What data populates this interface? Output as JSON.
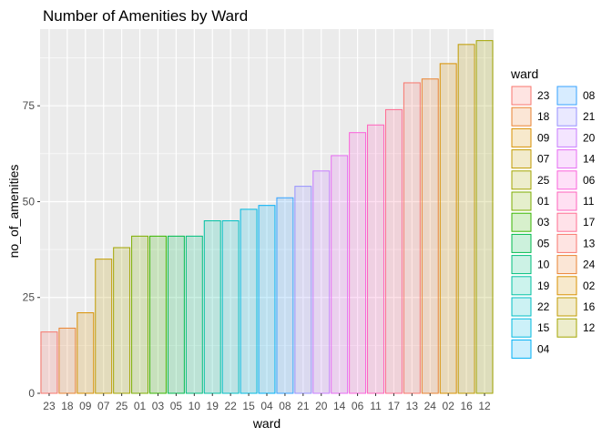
{
  "chart_data": {
    "type": "bar",
    "title": "Number of Amenities by Ward",
    "xlabel": "ward",
    "ylabel": "no_of_amenities",
    "categories": [
      "23",
      "18",
      "09",
      "07",
      "25",
      "01",
      "03",
      "05",
      "10",
      "19",
      "22",
      "15",
      "04",
      "08",
      "21",
      "20",
      "14",
      "06",
      "11",
      "17",
      "13",
      "24",
      "02",
      "16",
      "12"
    ],
    "values": [
      16,
      17,
      21,
      35,
      38,
      41,
      41,
      41,
      41,
      45,
      45,
      48,
      49,
      51,
      54,
      58,
      62,
      68,
      70,
      74,
      81,
      82,
      86,
      91,
      92
    ],
    "colors": [
      "#F8766D",
      "#EA8331",
      "#D89000",
      "#C09B00",
      "#A3A500",
      "#7CAE00",
      "#39B600",
      "#00BB4E",
      "#00BF7D",
      "#00C1A3",
      "#00BFC4",
      "#00BAE0",
      "#00B0F6",
      "#35A2FF",
      "#9590FF",
      "#C77CFF",
      "#E76BF3",
      "#FA62DB",
      "#FF62BC",
      "#FF6C91",
      "#F8766D",
      "#EA8331",
      "#D89000",
      "#C09B00",
      "#A3A500"
    ],
    "ylim": [
      0,
      95
    ],
    "yticks": [
      0,
      25,
      50,
      75
    ],
    "grid": true,
    "legend": {
      "title": "ward",
      "placement": "right",
      "columns": [
        [
          "23",
          "18",
          "09",
          "07",
          "25",
          "01",
          "03",
          "05",
          "10",
          "19",
          "22",
          "15",
          "04"
        ],
        [
          "08",
          "21",
          "20",
          "14",
          "06",
          "11",
          "17",
          "13",
          "24",
          "02",
          "16",
          "12"
        ]
      ]
    }
  }
}
